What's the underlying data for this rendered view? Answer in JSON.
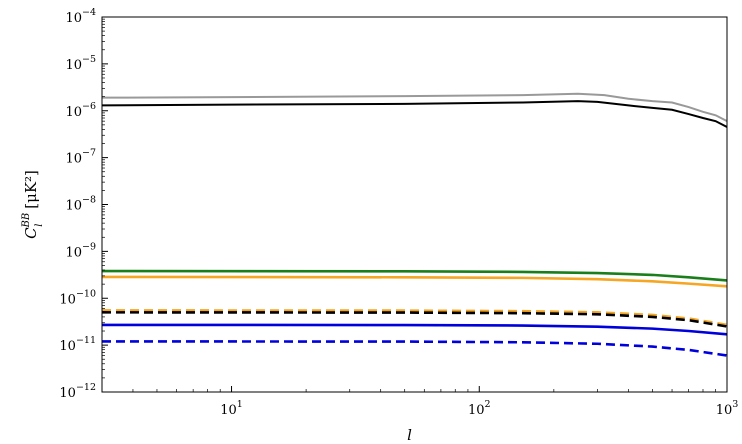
{
  "chart_data": {
    "type": "line",
    "xlabel": "l",
    "ylabel": {
      "base": "C",
      "superscript": "BB",
      "subscript": "l",
      "unit": "[μK²]"
    },
    "x_scale": "log",
    "y_scale": "log",
    "xlim": [
      3,
      1000
    ],
    "ylim": [
      1e-12,
      0.0001
    ],
    "grid": false,
    "x_ticks": [
      {
        "value": 10,
        "base": "10",
        "exp": "1"
      },
      {
        "value": 100,
        "base": "10",
        "exp": "2"
      },
      {
        "value": 1000,
        "base": "10",
        "exp": "3"
      }
    ],
    "y_ticks": [
      {
        "value": 0.0001,
        "base": "10",
        "exp": "−4"
      },
      {
        "value": 1e-05,
        "base": "10",
        "exp": "−5"
      },
      {
        "value": 1e-06,
        "base": "10",
        "exp": "−6"
      },
      {
        "value": 1e-07,
        "base": "10",
        "exp": "−7"
      },
      {
        "value": 1e-08,
        "base": "10",
        "exp": "−8"
      },
      {
        "value": 1e-09,
        "base": "10",
        "exp": "−9"
      },
      {
        "value": 1e-10,
        "base": "10",
        "exp": "−10"
      },
      {
        "value": 1e-11,
        "base": "10",
        "exp": "−11"
      },
      {
        "value": 1e-12,
        "base": "10",
        "exp": "−12"
      }
    ],
    "series": [
      {
        "color": "#999999",
        "dash": "solid",
        "points": [
          [
            3,
            1.9e-06
          ],
          [
            10,
            1.95e-06
          ],
          [
            50,
            2.05e-06
          ],
          [
            150,
            2.15e-06
          ],
          [
            250,
            2.3e-06
          ],
          [
            320,
            2.15e-06
          ],
          [
            400,
            1.8e-06
          ],
          [
            500,
            1.6e-06
          ],
          [
            600,
            1.5e-06
          ],
          [
            700,
            1.2e-06
          ],
          [
            800,
            9.5e-07
          ],
          [
            900,
            8e-07
          ],
          [
            1000,
            6e-07
          ]
        ]
      },
      {
        "color": "#000000",
        "dash": "solid",
        "points": [
          [
            3,
            1.3e-06
          ],
          [
            10,
            1.35e-06
          ],
          [
            50,
            1.4e-06
          ],
          [
            150,
            1.5e-06
          ],
          [
            250,
            1.6e-06
          ],
          [
            300,
            1.55e-06
          ],
          [
            400,
            1.3e-06
          ],
          [
            500,
            1.15e-06
          ],
          [
            600,
            1.05e-06
          ],
          [
            700,
            8.5e-07
          ],
          [
            800,
            7e-07
          ],
          [
            900,
            6e-07
          ],
          [
            1000,
            4.5e-07
          ]
        ]
      },
      {
        "color": "#1a7f1a",
        "dash": "solid",
        "points": [
          [
            3,
            3.8e-10
          ],
          [
            50,
            3.75e-10
          ],
          [
            150,
            3.65e-10
          ],
          [
            300,
            3.45e-10
          ],
          [
            500,
            3.15e-10
          ],
          [
            700,
            2.8e-10
          ],
          [
            1000,
            2.4e-10
          ]
        ]
      },
      {
        "color": "#f5a623",
        "dash": "solid",
        "points": [
          [
            3,
            2.85e-10
          ],
          [
            50,
            2.8e-10
          ],
          [
            150,
            2.72e-10
          ],
          [
            300,
            2.55e-10
          ],
          [
            500,
            2.3e-10
          ],
          [
            700,
            2.05e-10
          ],
          [
            1000,
            1.8e-10
          ]
        ]
      },
      {
        "color": "#f5a623",
        "dash": "dashed",
        "points": [
          [
            3,
            5.5e-11
          ],
          [
            50,
            5.45e-11
          ],
          [
            150,
            5.3e-11
          ],
          [
            300,
            5e-11
          ],
          [
            500,
            4.4e-11
          ],
          [
            700,
            3.7e-11
          ],
          [
            1000,
            2.7e-11
          ]
        ]
      },
      {
        "color": "#000000",
        "dash": "dashed",
        "points": [
          [
            3,
            5e-11
          ],
          [
            50,
            4.95e-11
          ],
          [
            150,
            4.8e-11
          ],
          [
            300,
            4.55e-11
          ],
          [
            500,
            4e-11
          ],
          [
            700,
            3.4e-11
          ],
          [
            1000,
            2.5e-11
          ]
        ]
      },
      {
        "color": "#0000dd",
        "dash": "solid",
        "points": [
          [
            3,
            2.7e-11
          ],
          [
            50,
            2.68e-11
          ],
          [
            150,
            2.62e-11
          ],
          [
            300,
            2.48e-11
          ],
          [
            500,
            2.25e-11
          ],
          [
            700,
            2e-11
          ],
          [
            1000,
            1.7e-11
          ]
        ]
      },
      {
        "color": "#0000dd",
        "dash": "dashed",
        "points": [
          [
            3,
            1.2e-11
          ],
          [
            50,
            1.19e-11
          ],
          [
            150,
            1.15e-11
          ],
          [
            300,
            1.07e-11
          ],
          [
            500,
            9.3e-12
          ],
          [
            700,
            7.9e-12
          ],
          [
            1000,
            6e-12
          ]
        ]
      }
    ]
  }
}
